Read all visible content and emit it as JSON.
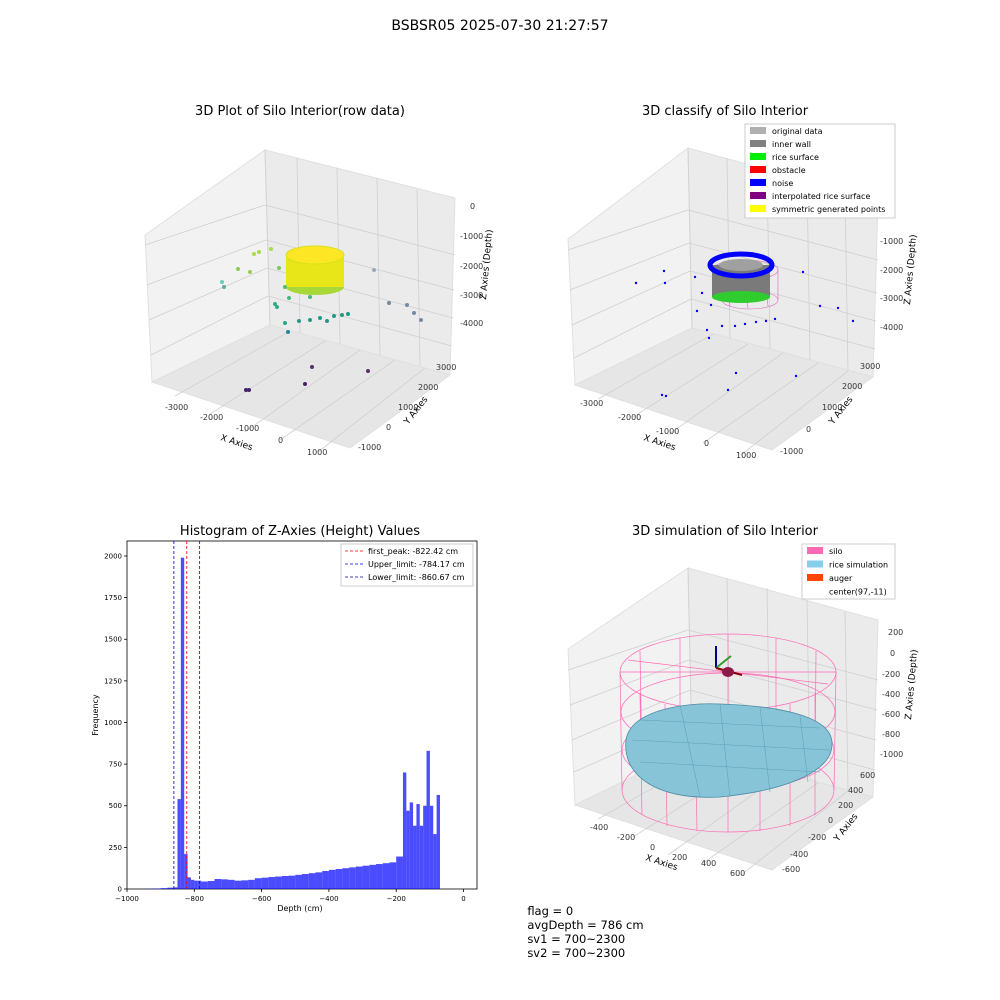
{
  "suptitle": "BSBSR05 2025-07-30 21:27:57",
  "panels": {
    "raw": {
      "title": "3D Plot of Silo Interior(row data)",
      "xlabel": "X Axies",
      "ylabel": "Y Axies",
      "zlabel": "Z Axies (Depth)",
      "xticks": [
        "-3000",
        "-2000",
        "-1000",
        "0",
        "1000"
      ],
      "yticks": [
        "-1000",
        "0",
        "1000",
        "2000",
        "3000"
      ],
      "zticks": [
        "0",
        "-1000",
        "-2000",
        "-3000",
        "-4000"
      ]
    },
    "classify": {
      "title": "3D classify of Silo Interior",
      "xlabel": "X Axies",
      "ylabel": "Y Axies",
      "zlabel": "Z Axies (Depth)",
      "xticks": [
        "-3000",
        "-2000",
        "-1000",
        "0",
        "1000"
      ],
      "yticks": [
        "-1000",
        "0",
        "1000",
        "2000",
        "3000"
      ],
      "zticks": [
        "0",
        "-1000",
        "-2000",
        "-3000",
        "-4000"
      ],
      "legend": [
        {
          "label": "original data",
          "color": "#b0b0b0"
        },
        {
          "label": "inner wall",
          "color": "#808080"
        },
        {
          "label": "rice surface",
          "color": "#00ee00"
        },
        {
          "label": "obstacle",
          "color": "#ff0000"
        },
        {
          "label": "noise",
          "color": "#0000ff"
        },
        {
          "label": "interpolated rice surface",
          "color": "#800080"
        },
        {
          "label": "symmetric generated points",
          "color": "#ffff00"
        }
      ]
    },
    "simulation": {
      "title": "3D simulation of Silo Interior",
      "xlabel": "X Axies",
      "ylabel": "Y Axies",
      "zlabel": "Z Axies (Depth)",
      "xticks": [
        "-400",
        "-200",
        "0",
        "200",
        "400",
        "600"
      ],
      "yticks": [
        "-600",
        "-400",
        "-200",
        "0",
        "200",
        "400",
        "600"
      ],
      "zticks": [
        "200",
        "0",
        "-200",
        "-400",
        "-600",
        "-800",
        "-1000"
      ],
      "legend": [
        {
          "label": "silo",
          "color": "#ff69b4"
        },
        {
          "label": "rice simulation",
          "color": "#87ceeb"
        },
        {
          "label": "auger",
          "color": "#ff4500"
        },
        {
          "label": "center(97,-11)",
          "color": ""
        }
      ]
    }
  },
  "chart_data": {
    "type": "bar",
    "title": "Histogram of Z-Axies (Height) Values",
    "xlabel": "Depth (cm)",
    "ylabel": "Frequency",
    "xlim": [
      -1000,
      40
    ],
    "ylim": [
      0,
      2090
    ],
    "xticks": [
      -1000,
      -800,
      -600,
      -400,
      -200,
      0
    ],
    "yticks": [
      0,
      250,
      500,
      750,
      1000,
      1250,
      1500,
      1750,
      2000
    ],
    "bar_color": "#0000ff",
    "bin_edges": [
      -1000,
      -980,
      -960,
      -940,
      -920,
      -900,
      -880,
      -860,
      -850,
      -840,
      -830,
      -820,
      -810,
      -800,
      -790,
      -780,
      -760,
      -740,
      -720,
      -700,
      -680,
      -660,
      -640,
      -620,
      -600,
      -580,
      -560,
      -540,
      -520,
      -500,
      -480,
      -460,
      -440,
      -420,
      -400,
      -380,
      -360,
      -340,
      -320,
      -300,
      -280,
      -260,
      -240,
      -220,
      -200,
      -180,
      -170,
      -160,
      -150,
      -140,
      -130,
      -120,
      -110,
      -100,
      -90,
      -80,
      -70,
      -60,
      -50,
      -40,
      -30,
      -20,
      -10,
      0
    ],
    "counts": [
      0,
      0,
      0,
      2,
      3,
      5,
      8,
      10,
      540,
      1990,
      210,
      70,
      55,
      50,
      50,
      45,
      48,
      60,
      58,
      55,
      50,
      52,
      55,
      65,
      68,
      72,
      75,
      78,
      80,
      85,
      90,
      95,
      100,
      108,
      115,
      120,
      125,
      130,
      135,
      140,
      145,
      150,
      155,
      160,
      195,
      700,
      470,
      520,
      380,
      510,
      380,
      500,
      830,
      500,
      330,
      565,
      0,
      0,
      0,
      0,
      0,
      0,
      0
    ],
    "lines": [
      {
        "label": "first_peak: -822.42 cm",
        "x": -822.42,
        "color": "#ff0000"
      },
      {
        "label": "Upper_limit: -784.17 cm",
        "x": -784.17,
        "color": "#0000ff"
      },
      {
        "label": "Lower_limit: -860.67 cm",
        "x": -860.67,
        "color": "#0000aa"
      }
    ],
    "legend_position": "top-right"
  },
  "status": {
    "flag": "flag = 0",
    "avg_depth": "avgDepth = 786 cm",
    "sv1": "sv1 = 700~2300",
    "sv2": "sv2 = 700~2300"
  }
}
